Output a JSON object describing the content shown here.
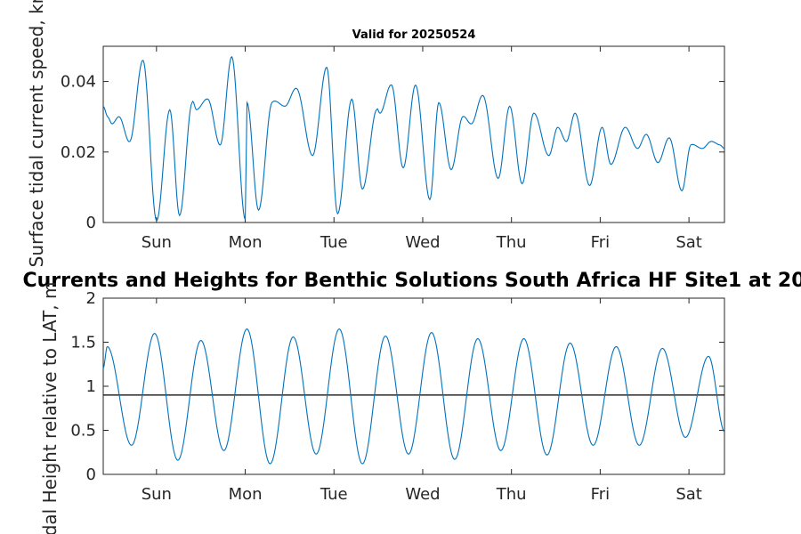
{
  "chart_data": [
    {
      "type": "line",
      "title": "Valid for 20250524",
      "ylabel": "Surface tidal current speed, kn",
      "ylim": [
        0,
        0.05
      ],
      "yticks": [
        0,
        0.02,
        0.04
      ],
      "ytick_labels": [
        "0",
        "0.02",
        "0.04"
      ],
      "xlim": [
        0,
        7
      ],
      "x_unit": "days from start of window",
      "xtick_labels": [
        "Sun",
        "Mon",
        "Tue",
        "Wed",
        "Thu",
        "Fri",
        "Sat"
      ],
      "xtick_positions": [
        0.6,
        1.6,
        2.6,
        3.6,
        4.6,
        5.6,
        6.6
      ],
      "grid": false,
      "series": [
        {
          "color": "#0072BD",
          "x": [
            0,
            0.05,
            0.1,
            0.18,
            0.3,
            0.45,
            0.6,
            0.75,
            0.86,
            1.0,
            1.05,
            1.18,
            1.32,
            1.45,
            1.6,
            1.62,
            1.75,
            1.9,
            2.05,
            2.18,
            2.36,
            2.52,
            2.64,
            2.8,
            2.92,
            3.08,
            3.12,
            3.25,
            3.38,
            3.52,
            3.68,
            3.78,
            3.92,
            4.05,
            4.15,
            4.28,
            4.45,
            4.58,
            4.72,
            4.85,
            5.02,
            5.12,
            5.22,
            5.32,
            5.48,
            5.62,
            5.72,
            5.88,
            6.02,
            6.12,
            6.25,
            6.38,
            6.52,
            6.62,
            6.75,
            6.85,
            6.95,
            7.0
          ],
          "y": [
            0.033,
            0.03,
            0.028,
            0.03,
            0.023,
            0.046,
            0.0005,
            0.032,
            0.002,
            0.034,
            0.032,
            0.035,
            0.022,
            0.047,
            0.0008,
            0.034,
            0.0035,
            0.034,
            0.033,
            0.038,
            0.019,
            0.044,
            0.0025,
            0.035,
            0.0095,
            0.032,
            0.031,
            0.039,
            0.0155,
            0.039,
            0.0065,
            0.034,
            0.015,
            0.03,
            0.028,
            0.036,
            0.0125,
            0.033,
            0.011,
            0.031,
            0.019,
            0.027,
            0.023,
            0.031,
            0.0105,
            0.027,
            0.0165,
            0.027,
            0.021,
            0.025,
            0.017,
            0.024,
            0.009,
            0.022,
            0.021,
            0.023,
            0.022,
            0.021
          ]
        }
      ]
    },
    {
      "type": "line",
      "title": "Currents and Heights for Benthic Solutions South Africa HF Site1 at 20",
      "ylabel": "Tidal Height relative to LAT, m",
      "ylim": [
        0,
        2
      ],
      "yticks": [
        0,
        0.5,
        1,
        1.5,
        2
      ],
      "ytick_labels": [
        "0",
        "0.5",
        "1",
        "1.5",
        "2"
      ],
      "xlim": [
        0,
        7
      ],
      "xtick_labels": [
        "Sun",
        "Mon",
        "Tue",
        "Wed",
        "Thu",
        "Fri",
        "Sat"
      ],
      "xtick_positions": [
        0.6,
        1.6,
        2.6,
        3.6,
        4.6,
        5.6,
        6.6
      ],
      "grid": false,
      "reference_line": {
        "y": 0.9,
        "color": "#000000"
      },
      "series": [
        {
          "color": "#0072BD",
          "x": [
            0.0,
            0.05,
            0.32,
            0.58,
            0.84,
            1.1,
            1.36,
            1.62,
            1.88,
            2.14,
            2.4,
            2.66,
            2.92,
            3.18,
            3.44,
            3.7,
            3.96,
            4.22,
            4.48,
            4.74,
            5.0,
            5.26,
            5.52,
            5.78,
            6.04,
            6.3,
            6.56,
            6.82,
            7.0
          ],
          "y": [
            1.2,
            1.45,
            0.33,
            1.6,
            0.16,
            1.52,
            0.27,
            1.65,
            0.12,
            1.56,
            0.23,
            1.65,
            0.12,
            1.57,
            0.23,
            1.61,
            0.17,
            1.54,
            0.27,
            1.54,
            0.22,
            1.49,
            0.33,
            1.45,
            0.33,
            1.43,
            0.42,
            1.34,
            0.48
          ]
        }
      ]
    }
  ]
}
